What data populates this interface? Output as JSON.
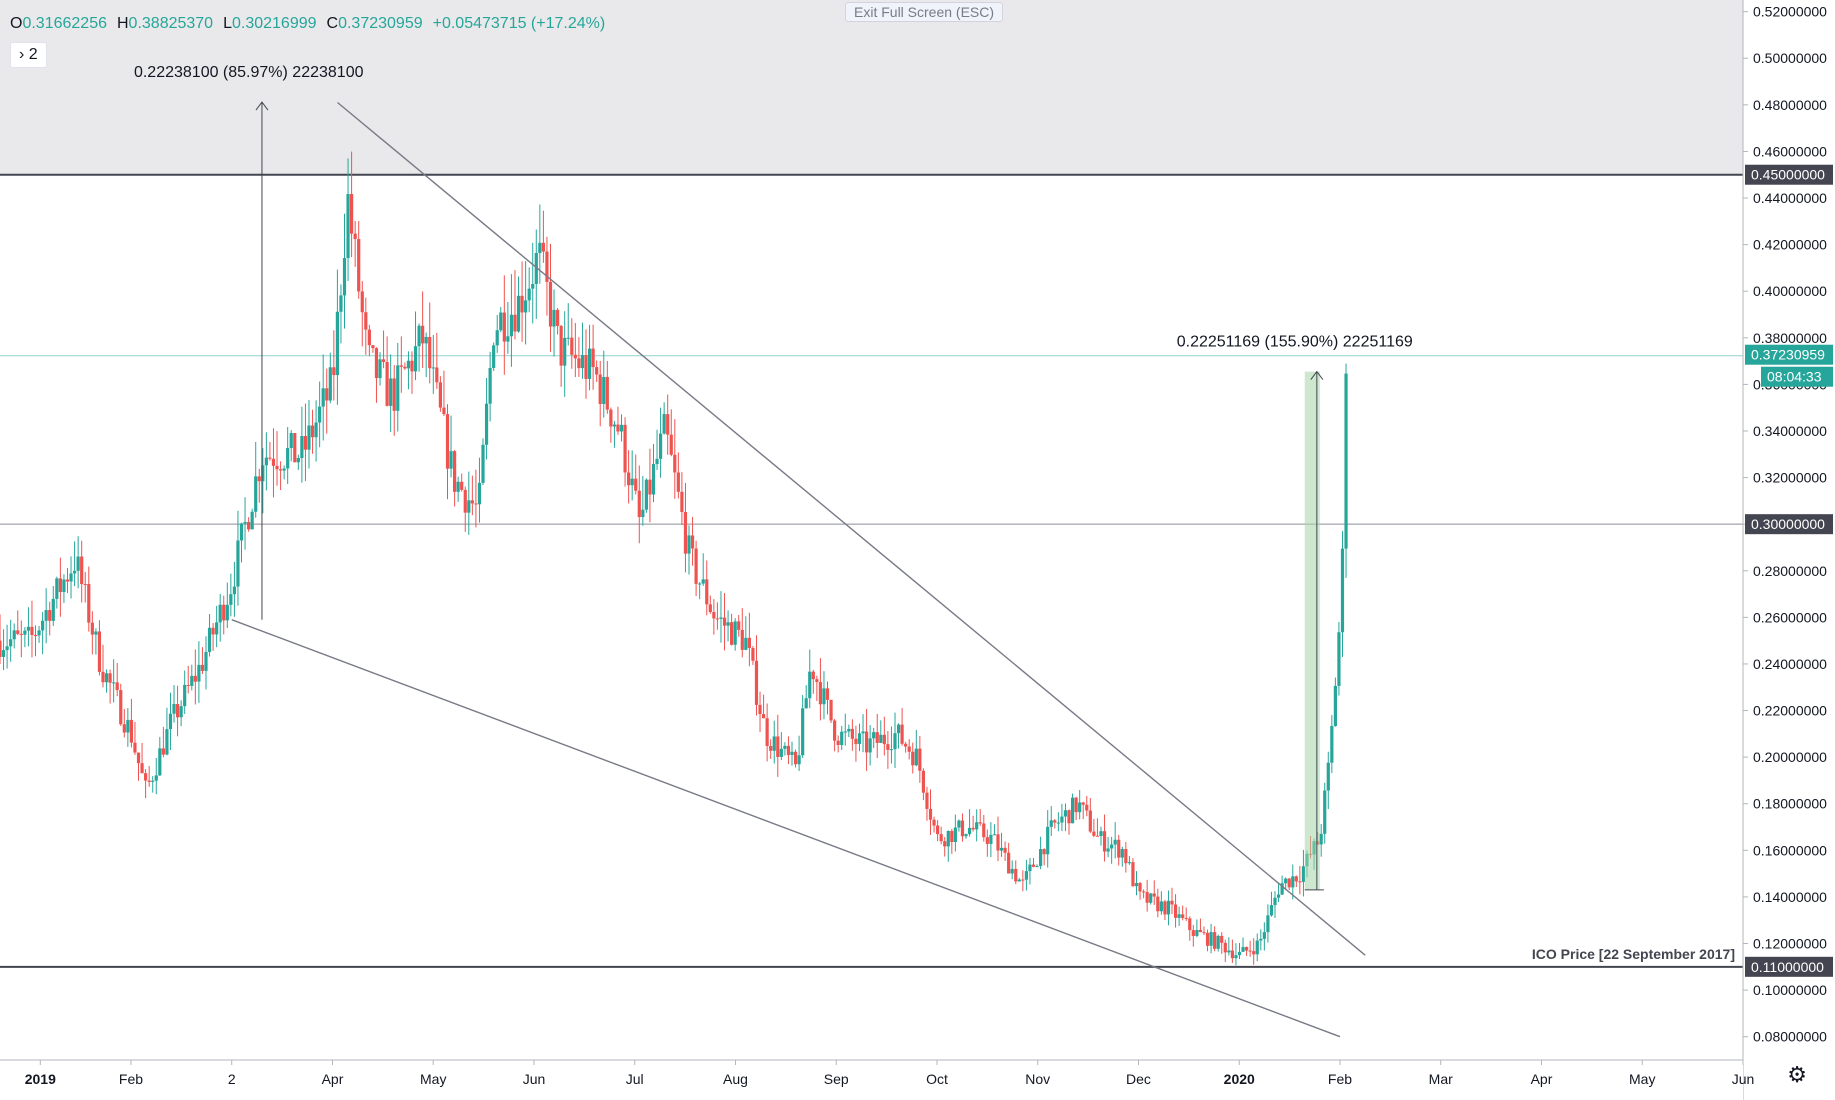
{
  "header": {
    "exit_fullscreen": "Exit Full Screen (ESC)",
    "ohlc": {
      "o_label": "O",
      "o": "0.31662256",
      "h_label": "H",
      "h": "0.38825370",
      "l_label": "L",
      "l": "0.30216999",
      "c_label": "C",
      "c": "0.37230959",
      "change": "+0.05473715 (+17.24%)"
    },
    "interval_chevron": "›",
    "interval": "2"
  },
  "colors": {
    "up": "#26a69a",
    "down": "#ef5350",
    "line": "#787b86",
    "hline": "#434651",
    "zone": "#e9e9eb",
    "measure": "#a5d6a7"
  },
  "chart_data": {
    "type": "candlestick",
    "ylim": [
      0.07,
      0.525
    ],
    "y_ticks": [
      "0.08000000",
      "0.10000000",
      "0.12000000",
      "0.14000000",
      "0.16000000",
      "0.18000000",
      "0.20000000",
      "0.22000000",
      "0.24000000",
      "0.26000000",
      "0.28000000",
      "0.30000000",
      "0.32000000",
      "0.34000000",
      "0.36000000",
      "0.38000000",
      "0.40000000",
      "0.42000000",
      "0.44000000",
      "0.46000000",
      "0.48000000",
      "0.50000000",
      "0.52000000"
    ],
    "x_labels": [
      {
        "label": "2019",
        "t": 0.1
      },
      {
        "label": "Feb",
        "t": 1.0
      },
      {
        "label": "2",
        "t": 2.0
      },
      {
        "label": "Apr",
        "t": 3.0
      },
      {
        "label": "May",
        "t": 4.0
      },
      {
        "label": "Jun",
        "t": 5.0
      },
      {
        "label": "Jul",
        "t": 6.0
      },
      {
        "label": "Aug",
        "t": 7.0
      },
      {
        "label": "Sep",
        "t": 8.0
      },
      {
        "label": "Oct",
        "t": 9.0
      },
      {
        "label": "Nov",
        "t": 10.0
      },
      {
        "label": "Dec",
        "t": 11.0
      },
      {
        "label": "2020",
        "t": 12.0
      },
      {
        "label": "Feb",
        "t": 13.0
      },
      {
        "label": "Mar",
        "t": 14.0
      },
      {
        "label": "Apr",
        "t": 15.0
      },
      {
        "label": "May",
        "t": 16.0
      },
      {
        "label": "Jun",
        "t": 17.0
      }
    ],
    "x_range": [
      -0.3,
      17.0
    ],
    "price_path": [
      [
        -0.3,
        0.25
      ],
      [
        0.0,
        0.25
      ],
      [
        0.45,
        0.285
      ],
      [
        0.7,
        0.24
      ],
      [
        1.0,
        0.21
      ],
      [
        1.15,
        0.185
      ],
      [
        1.4,
        0.215
      ],
      [
        1.7,
        0.24
      ],
      [
        2.0,
        0.275
      ],
      [
        2.3,
        0.33
      ],
      [
        2.7,
        0.33
      ],
      [
        3.0,
        0.36
      ],
      [
        3.15,
        0.44
      ],
      [
        3.35,
        0.37
      ],
      [
        3.6,
        0.355
      ],
      [
        3.9,
        0.38
      ],
      [
        4.2,
        0.32
      ],
      [
        4.45,
        0.305
      ],
      [
        4.6,
        0.385
      ],
      [
        4.85,
        0.395
      ],
      [
        5.05,
        0.415
      ],
      [
        5.25,
        0.375
      ],
      [
        5.6,
        0.365
      ],
      [
        5.85,
        0.34
      ],
      [
        6.05,
        0.3
      ],
      [
        6.3,
        0.34
      ],
      [
        6.55,
        0.285
      ],
      [
        6.8,
        0.26
      ],
      [
        7.1,
        0.25
      ],
      [
        7.3,
        0.21
      ],
      [
        7.6,
        0.195
      ],
      [
        7.75,
        0.24
      ],
      [
        8.0,
        0.21
      ],
      [
        8.3,
        0.205
      ],
      [
        8.6,
        0.21
      ],
      [
        8.8,
        0.2
      ],
      [
        9.0,
        0.165
      ],
      [
        9.3,
        0.17
      ],
      [
        9.55,
        0.165
      ],
      [
        9.85,
        0.145
      ],
      [
        10.15,
        0.17
      ],
      [
        10.4,
        0.18
      ],
      [
        10.6,
        0.165
      ],
      [
        10.85,
        0.16
      ],
      [
        11.0,
        0.14
      ],
      [
        11.3,
        0.135
      ],
      [
        11.55,
        0.125
      ],
      [
        11.8,
        0.12
      ],
      [
        12.0,
        0.115
      ],
      [
        12.2,
        0.12
      ],
      [
        12.4,
        0.145
      ],
      [
        12.6,
        0.15
      ],
      [
        12.8,
        0.165
      ],
      [
        12.9,
        0.2
      ],
      [
        13.0,
        0.26
      ],
      [
        13.04,
        0.3
      ],
      [
        13.06,
        0.3724
      ]
    ],
    "horizontal_lines": [
      {
        "value": 0.45,
        "label": "0.45000000"
      },
      {
        "value": 0.3,
        "label": "0.30000000"
      },
      {
        "value": 0.11,
        "label": "0.11000000"
      }
    ],
    "last_price": {
      "value": 0.37230959,
      "label": "0.37230959",
      "countdown": "08:04:33"
    },
    "trendlines": [
      {
        "from": [
          3.05,
          0.481
        ],
        "to": [
          13.25,
          0.115
        ]
      },
      {
        "from": [
          2.0,
          0.259
        ],
        "to": [
          13.0,
          0.08
        ]
      }
    ],
    "measures": [
      {
        "x": 2.3,
        "from": 0.259,
        "to": 0.4812,
        "label": "0.22238100 (85.97%) 22238100"
      },
      {
        "x1": 12.65,
        "x2": 12.8,
        "from": 0.143,
        "to": 0.3655,
        "label": "0.22251169 (155.90%) 22251169"
      }
    ],
    "annotations": [
      {
        "text": "ICO Price [22 September 2017]",
        "value": 0.11
      }
    ],
    "zone": {
      "from": 0.45,
      "to": 0.525
    }
  }
}
